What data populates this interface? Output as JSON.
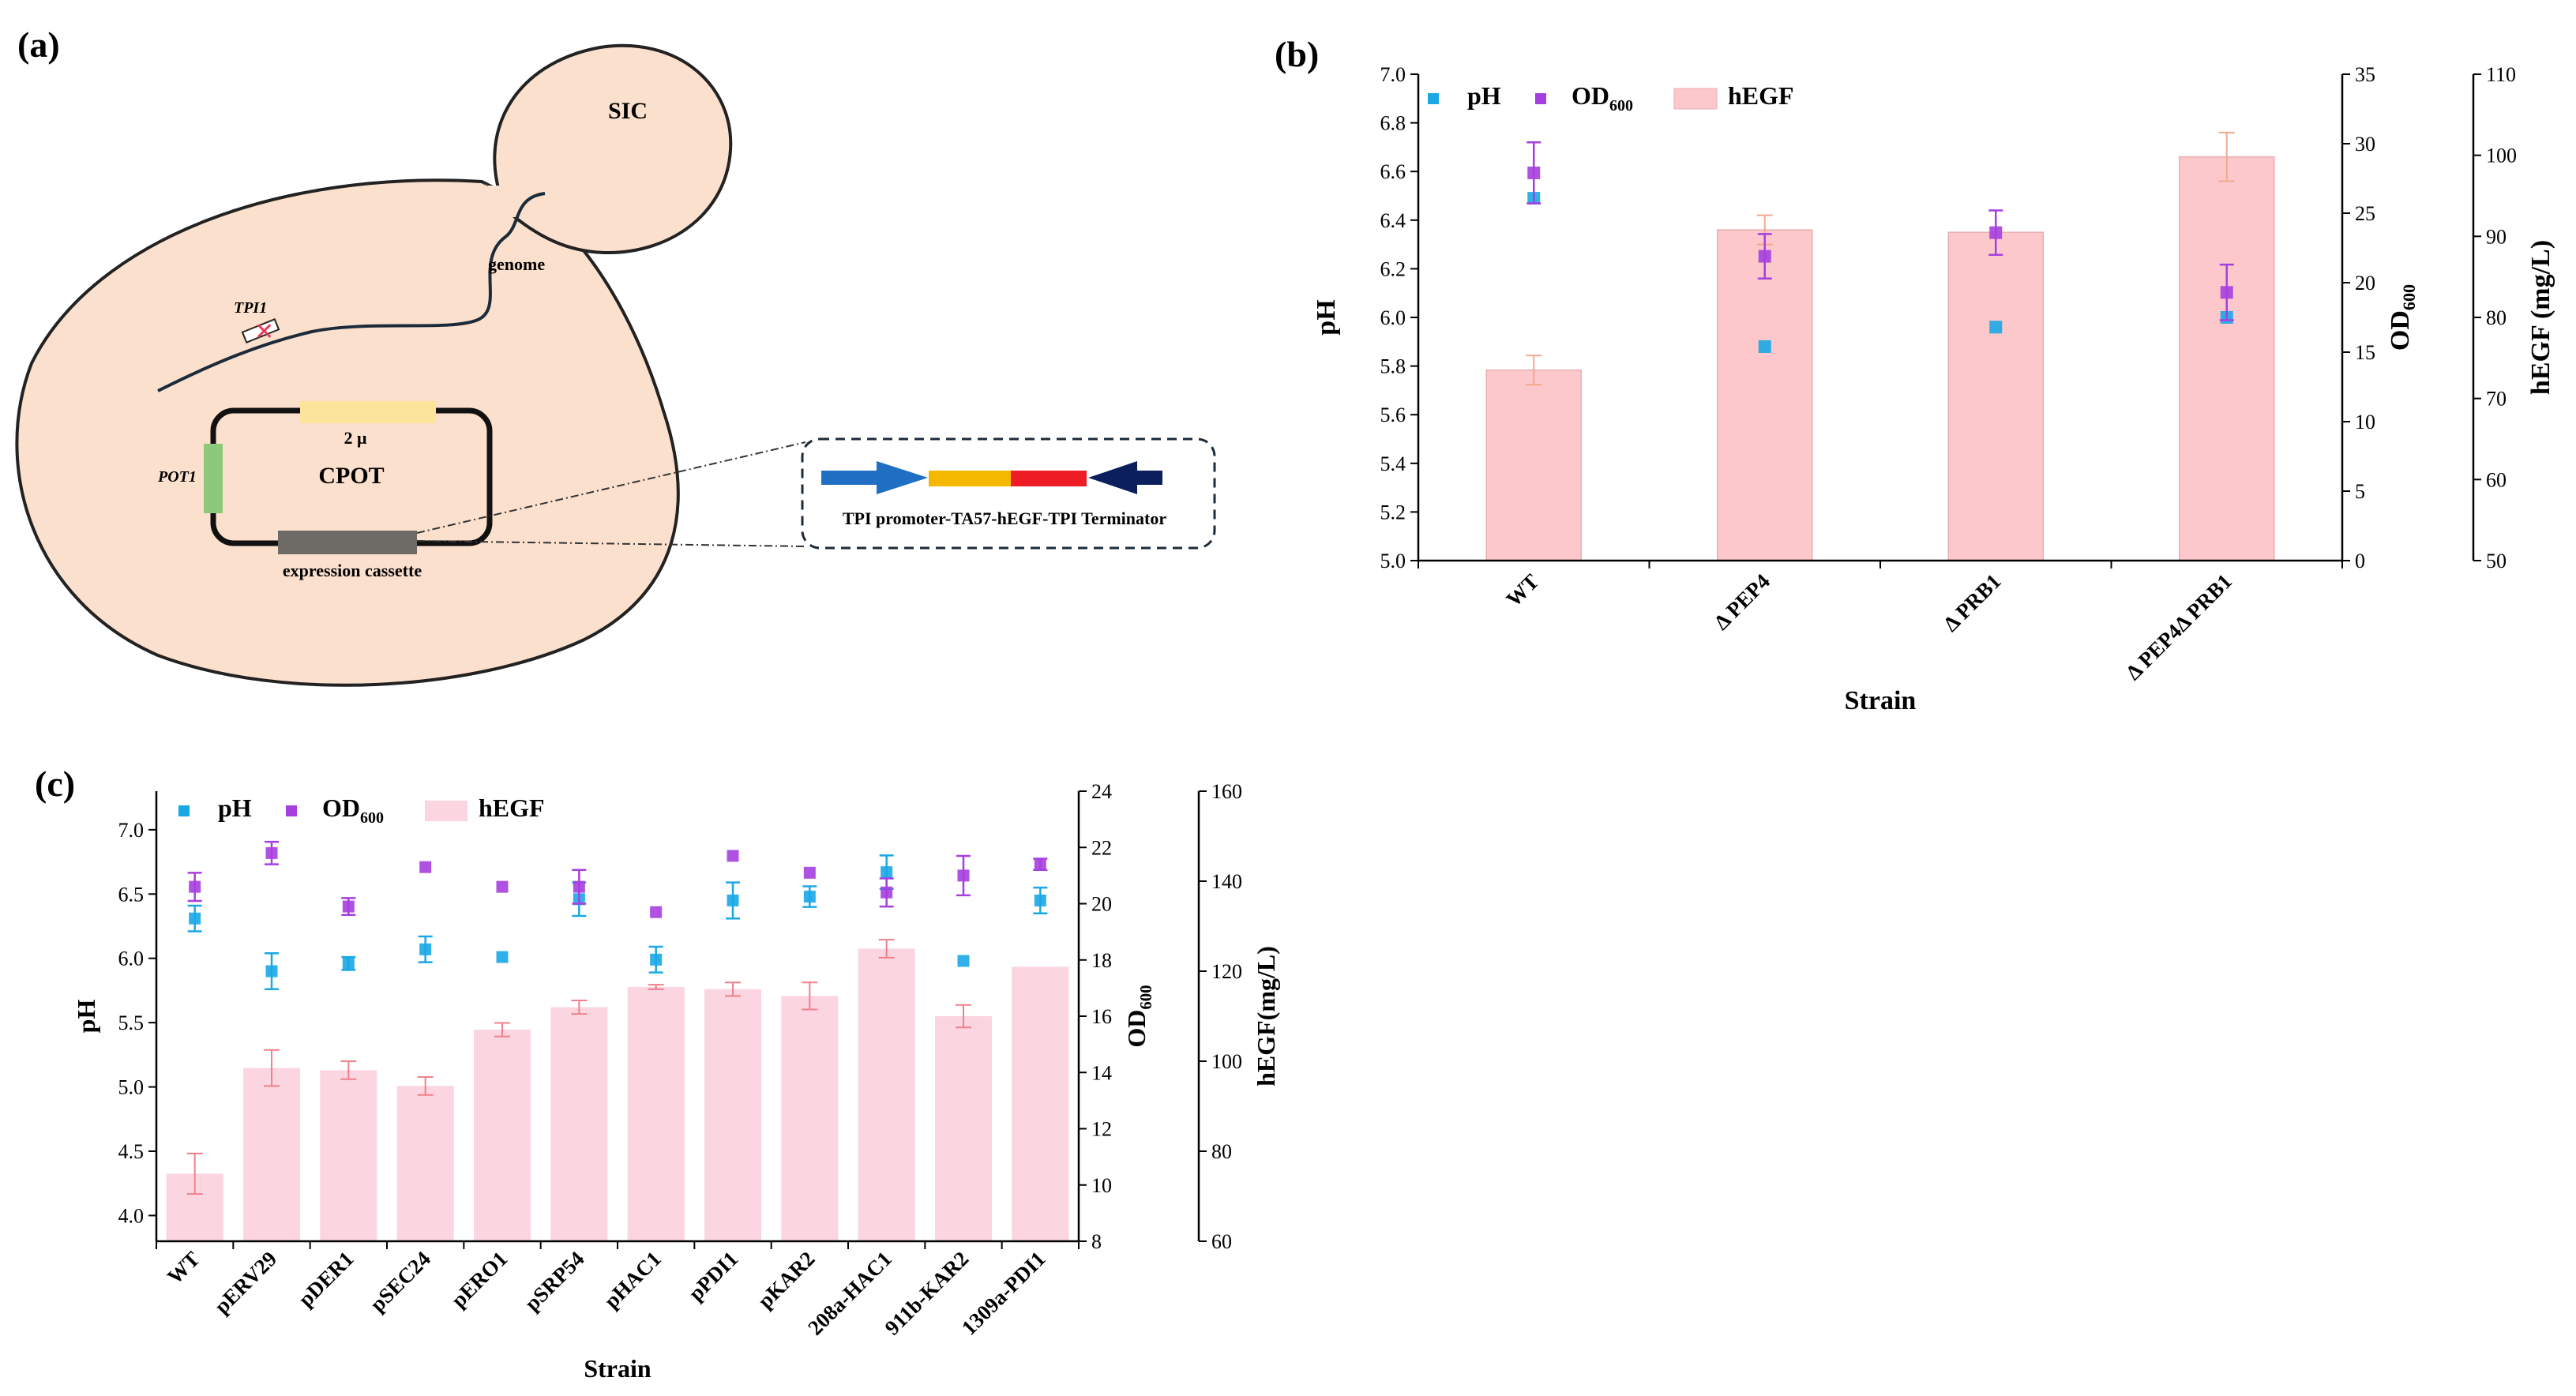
{
  "panel_a": {
    "label": "(a)",
    "sic": "SIC",
    "genome": "genome",
    "tpi1": "TPI1",
    "pot1": "POT1",
    "cpot": "CPOT",
    "two_mu": "2 μ",
    "expression_cassette": "expression cassette",
    "cassette_label": "TPI promoter-TA57-hEGF-TPI Terminator",
    "colors": {
      "cell_fill": "#fbe0cd",
      "promoter": "#1f6fc4",
      "ta57": "#f5b800",
      "hegf": "#ee1c25",
      "terminator": "#0a1f5c",
      "pot1_bar": "#8dc97a",
      "two_mu_bar": "#fce49a",
      "cassette_bar": "#6e6a66",
      "tpi1_mark": "#e8395a"
    }
  },
  "chart_data": [
    {
      "panel": "(b)",
      "type": "bar",
      "xlabel": "Strain",
      "categories": [
        "WT",
        "Δ PEP4",
        "Δ PRB1",
        "Δ PEP4Δ PRB1"
      ],
      "legend": [
        "pH",
        "OD600",
        "hEGF"
      ],
      "legend_position": "top-left",
      "axes": {
        "ph": {
          "label": "pH",
          "lim": [
            5.0,
            7.0
          ],
          "ticks": [
            "5.0",
            "5.2",
            "5.4",
            "5.6",
            "5.8",
            "6.0",
            "6.2",
            "6.4",
            "6.6",
            "6.8",
            "7.0"
          ]
        },
        "od": {
          "label": "OD",
          "label_sub": "600",
          "lim": [
            0,
            35
          ],
          "ticks": [
            "0",
            "5",
            "10",
            "15",
            "20",
            "25",
            "30",
            "35"
          ]
        },
        "hegf": {
          "label": "hEGF (mg/L)",
          "lim": [
            50,
            110
          ],
          "ticks": [
            "50",
            "60",
            "70",
            "80",
            "90",
            "100",
            "110"
          ]
        }
      },
      "series": [
        {
          "name": "hEGF",
          "axis": "hegf",
          "values": [
            73.5,
            90.8,
            90.5,
            99.8
          ],
          "errors": [
            1.8,
            1.8,
            0,
            3.0
          ]
        },
        {
          "name": "pH",
          "axis": "ph",
          "values": [
            6.49,
            5.88,
            5.96,
            6.0
          ],
          "errors": [
            0,
            0,
            0,
            0
          ]
        },
        {
          "name": "OD600",
          "axis": "od",
          "values": [
            27.9,
            21.9,
            23.6,
            19.3
          ],
          "errors": [
            2.2,
            1.6,
            1.6,
            2.0
          ]
        }
      ],
      "colors": {
        "ph": "#1aa7e6",
        "od": "#a63fe0",
        "hegf": "#fcc8cb",
        "bar_error": "#f2a98c"
      }
    },
    {
      "panel": "(c)",
      "type": "bar",
      "xlabel": "Strain",
      "categories": [
        "WT",
        "pERV29",
        "pDER1",
        "pSEC24",
        "pERO1",
        "pSRP54",
        "pHAC1",
        "pPDI1",
        "pKAR2",
        "208a-HAC1",
        "911b-KAR2",
        "1309a-PDI1"
      ],
      "legend": [
        "pH",
        "OD600",
        "hEGF"
      ],
      "legend_position": "top-left",
      "axes": {
        "ph": {
          "label": "pH",
          "lim": [
            3.8,
            7.3
          ],
          "ticks": [
            "4.0",
            "4.5",
            "5.0",
            "5.5",
            "6.0",
            "6.5",
            "7.0"
          ]
        },
        "od": {
          "label": "OD",
          "label_sub": "600",
          "lim": [
            8,
            24
          ],
          "ticks": [
            "8",
            "10",
            "12",
            "14",
            "16",
            "18",
            "20",
            "22",
            "24"
          ]
        },
        "hegf": {
          "label": "hEGF(mg/L)",
          "lim": [
            60,
            160
          ],
          "ticks": [
            "60",
            "80",
            "100",
            "120",
            "140",
            "160"
          ]
        }
      },
      "series": [
        {
          "name": "hEGF",
          "axis": "hegf",
          "values": [
            75.0,
            98.5,
            98.0,
            94.5,
            107.0,
            112.0,
            116.5,
            116.0,
            114.5,
            125.0,
            110.0,
            121.0
          ],
          "errors": [
            4.5,
            4.0,
            2.0,
            2.0,
            1.5,
            1.5,
            0.5,
            1.5,
            3.0,
            2.0,
            2.5,
            0
          ],
          "source_note": ""
        },
        {
          "name": "pH",
          "axis": "ph",
          "values": [
            6.31,
            5.9,
            5.96,
            6.07,
            6.01,
            6.46,
            5.99,
            6.45,
            6.48,
            6.67,
            5.98,
            6.45
          ],
          "errors": [
            0.1,
            0.14,
            0.05,
            0.1,
            0,
            0.13,
            0.1,
            0.14,
            0.08,
            0.13,
            0,
            0.1
          ]
        },
        {
          "name": "OD600",
          "axis": "od",
          "values": [
            20.6,
            21.8,
            19.9,
            21.3,
            20.6,
            20.6,
            19.7,
            21.7,
            21.1,
            20.4,
            21.0,
            21.4
          ],
          "errors": [
            0.5,
            0.4,
            0.3,
            0,
            0,
            0.6,
            0,
            0,
            0,
            0.5,
            0.7,
            0.2
          ]
        }
      ],
      "colors": {
        "ph": "#1aa7e6",
        "od": "#a63fe0",
        "hegf": "#fbd5e0",
        "bar_error": "#f0808a"
      }
    }
  ]
}
